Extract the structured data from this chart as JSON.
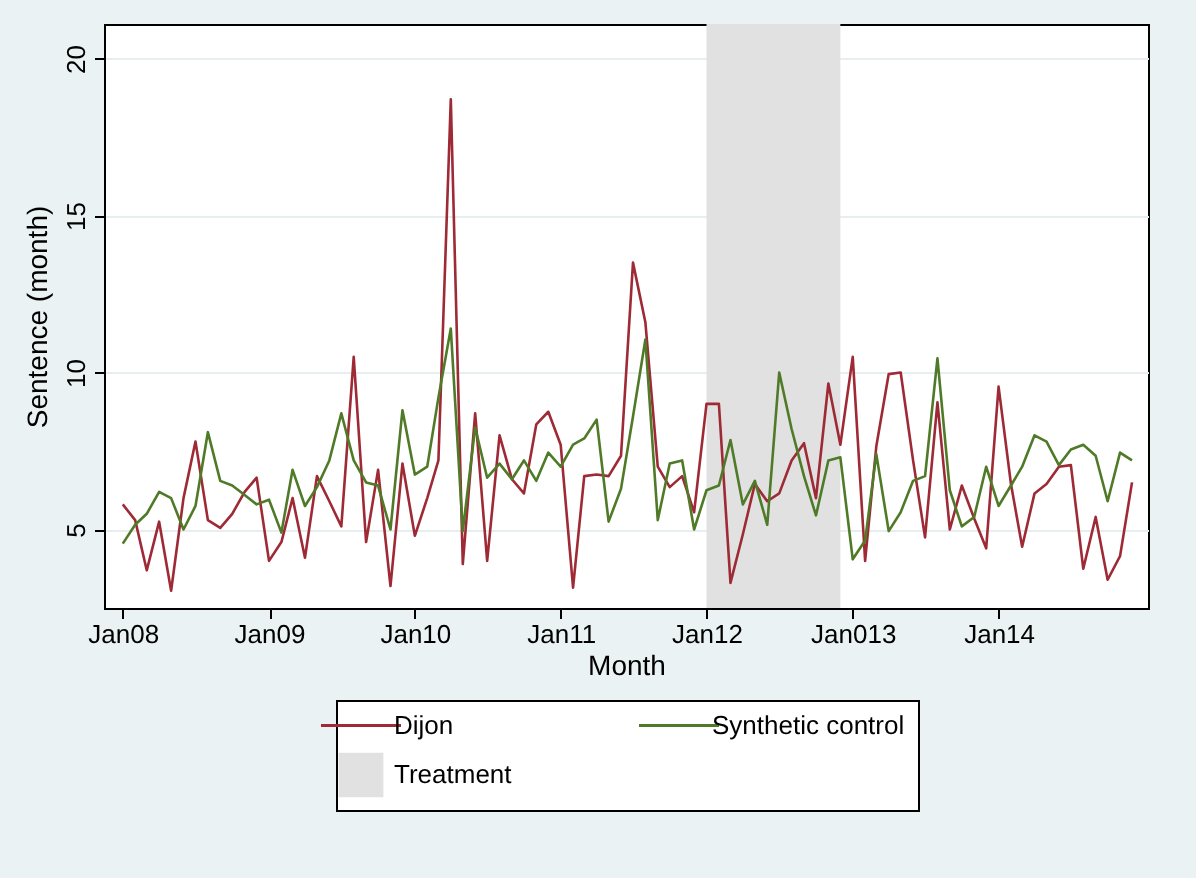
{
  "chart_data": {
    "type": "line",
    "xlabel": "Month",
    "ylabel": "Sentence (month)",
    "x": [
      "2008-01",
      "2008-02",
      "2008-03",
      "2008-04",
      "2008-05",
      "2008-06",
      "2008-07",
      "2008-08",
      "2008-09",
      "2008-10",
      "2008-11",
      "2008-12",
      "2009-01",
      "2009-02",
      "2009-03",
      "2009-04",
      "2009-05",
      "2009-06",
      "2009-07",
      "2009-08",
      "2009-09",
      "2009-10",
      "2009-11",
      "2009-12",
      "2010-01",
      "2010-02",
      "2010-03",
      "2010-04",
      "2010-05",
      "2010-06",
      "2010-07",
      "2010-08",
      "2010-09",
      "2010-10",
      "2010-11",
      "2010-12",
      "2011-01",
      "2011-02",
      "2011-03",
      "2011-04",
      "2011-05",
      "2011-06",
      "2011-07",
      "2011-08",
      "2011-09",
      "2011-10",
      "2011-11",
      "2011-12",
      "2012-01",
      "2012-02",
      "2012-03",
      "2012-04",
      "2012-05",
      "2012-06",
      "2012-07",
      "2012-08",
      "2012-09",
      "2012-10",
      "2012-11",
      "2012-12",
      "2013-01",
      "2013-02",
      "2013-03",
      "2013-04",
      "2013-05",
      "2013-06",
      "2013-07",
      "2013-08",
      "2013-09",
      "2013-10",
      "2013-11",
      "2013-12",
      "2014-01",
      "2014-02",
      "2014-03",
      "2014-04",
      "2014-05",
      "2014-06",
      "2014-07",
      "2014-08",
      "2014-09",
      "2014-10",
      "2014-11",
      "2014-12"
    ],
    "series": [
      {
        "name": "Dijon",
        "color": "#9e2a36",
        "values": [
          5.8,
          5.3,
          3.7,
          5.25,
          3.05,
          6.0,
          7.8,
          5.3,
          5.05,
          5.5,
          6.2,
          6.65,
          4.0,
          4.6,
          6.0,
          4.1,
          6.7,
          5.9,
          5.1,
          10.5,
          4.6,
          6.9,
          3.2,
          7.1,
          4.8,
          6.0,
          7.2,
          18.7,
          3.9,
          8.7,
          4.0,
          8.0,
          6.6,
          6.15,
          8.35,
          8.75,
          7.7,
          3.15,
          6.7,
          6.75,
          6.7,
          7.35,
          13.5,
          11.6,
          7.0,
          6.35,
          6.7,
          5.55,
          9.0,
          9.0,
          3.3,
          4.85,
          6.45,
          5.9,
          6.15,
          7.2,
          7.75,
          6.0,
          9.65,
          7.7,
          10.5,
          4.0,
          7.65,
          9.95,
          10.0,
          7.2,
          4.75,
          9.05,
          5.0,
          6.4,
          5.35,
          4.4,
          9.55,
          6.45,
          4.45,
          6.15,
          6.45,
          7.0,
          7.05,
          3.75,
          5.4,
          3.4,
          4.15,
          6.5
        ]
      },
      {
        "name": "Synthetic control",
        "color": "#4f7a28",
        "values": [
          4.55,
          5.15,
          5.5,
          6.2,
          6.0,
          5.0,
          5.75,
          8.1,
          6.55,
          6.4,
          6.1,
          5.8,
          5.95,
          4.9,
          6.9,
          5.75,
          6.35,
          7.2,
          8.7,
          7.2,
          6.5,
          6.4,
          5.0,
          8.8,
          6.75,
          7.0,
          9.2,
          11.4,
          4.95,
          8.25,
          6.65,
          7.1,
          6.6,
          7.2,
          6.55,
          7.45,
          7.0,
          7.7,
          7.9,
          8.5,
          5.25,
          6.3,
          8.6,
          11.05,
          5.3,
          7.1,
          7.2,
          5.0,
          6.25,
          6.4,
          7.85,
          5.8,
          6.55,
          5.15,
          10.0,
          8.2,
          6.7,
          5.45,
          7.2,
          7.3,
          4.05,
          4.65,
          7.4,
          4.95,
          5.55,
          6.55,
          6.7,
          10.45,
          6.25,
          5.1,
          5.4,
          7.0,
          5.75,
          6.4,
          7.0,
          8.0,
          7.8,
          7.05,
          7.55,
          7.7,
          7.35,
          5.9,
          7.45,
          7.2
        ]
      }
    ],
    "bands": [
      {
        "axis": "x",
        "from": "2012-01",
        "to": "2012-12",
        "label": "Treatment",
        "color": "#e1e1e1"
      }
    ],
    "xlim": [
      "2007-11-15",
      "2015-01-10"
    ],
    "xticks": [
      {
        "value": "2008-01",
        "label": "Jan08"
      },
      {
        "value": "2009-01",
        "label": "Jan09"
      },
      {
        "value": "2010-01",
        "label": "Jan10"
      },
      {
        "value": "2011-01",
        "label": "Jan11"
      },
      {
        "value": "2012-01",
        "label": "Jan12"
      },
      {
        "value": "2013-01",
        "label": "Jan013"
      },
      {
        "value": "2014-01",
        "label": "Jan14"
      }
    ],
    "ylim": [
      2.5,
      21.1
    ],
    "yticks": [
      5,
      10,
      15,
      20
    ],
    "grid": "y",
    "legend": "bottom",
    "line_style": "solid"
  }
}
